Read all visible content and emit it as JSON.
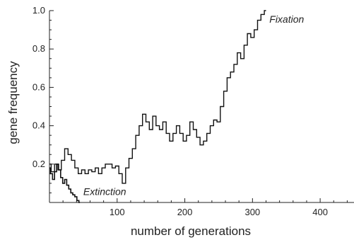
{
  "chart_data": {
    "type": "line",
    "xlabel": "number of generations",
    "ylabel": "gene frequency",
    "xlim": [
      0,
      450
    ],
    "ylim": [
      0,
      1.0
    ],
    "x_ticks": [
      100,
      200,
      300,
      400
    ],
    "y_ticks": [
      0.2,
      0.4,
      0.6,
      0.8,
      1.0
    ],
    "x_tick_labels": [
      "100",
      "200",
      "300",
      "400"
    ],
    "y_tick_labels": [
      "0.2",
      "0.4",
      "0.6",
      "0.8",
      "1.0"
    ],
    "grid": false,
    "annotations": [
      {
        "text": "Fixation",
        "x": 325,
        "y": 0.975
      },
      {
        "text": "Extinction",
        "x": 50,
        "y": 0.02
      }
    ],
    "series": [
      {
        "x": [
          0,
          5,
          10,
          15,
          20,
          25,
          30,
          35,
          40,
          45,
          50,
          55,
          60,
          65,
          70,
          75,
          80,
          85,
          90,
          95,
          100,
          105,
          110,
          115,
          120,
          125,
          130,
          135,
          140,
          145,
          150,
          155,
          160,
          165,
          170,
          175,
          180,
          185,
          190,
          195,
          200,
          205,
          210,
          215,
          220,
          225,
          230,
          235,
          240,
          245,
          250,
          255,
          260,
          265,
          270,
          275,
          280,
          285,
          290,
          295,
          300,
          305,
          310,
          315,
          320
        ],
        "values": [
          0.2,
          0.16,
          0.2,
          0.17,
          0.22,
          0.28,
          0.25,
          0.22,
          0.18,
          0.15,
          0.17,
          0.15,
          0.17,
          0.16,
          0.18,
          0.15,
          0.18,
          0.2,
          0.2,
          0.18,
          0.19,
          0.15,
          0.1,
          0.18,
          0.23,
          0.28,
          0.35,
          0.4,
          0.46,
          0.42,
          0.38,
          0.45,
          0.4,
          0.38,
          0.42,
          0.36,
          0.32,
          0.36,
          0.4,
          0.36,
          0.32,
          0.35,
          0.42,
          0.38,
          0.34,
          0.3,
          0.32,
          0.36,
          0.4,
          0.43,
          0.42,
          0.5,
          0.58,
          0.65,
          0.68,
          0.72,
          0.78,
          0.75,
          0.82,
          0.88,
          0.86,
          0.9,
          0.95,
          0.98,
          1.0
        ]
      },
      {
        "x": [
          0,
          3,
          6,
          9,
          12,
          15,
          18,
          21,
          24,
          27,
          30,
          33,
          36,
          39,
          42,
          45
        ],
        "values": [
          0.18,
          0.15,
          0.12,
          0.16,
          0.2,
          0.17,
          0.13,
          0.1,
          0.12,
          0.09,
          0.07,
          0.05,
          0.04,
          0.03,
          0.01,
          0.0
        ]
      }
    ]
  }
}
